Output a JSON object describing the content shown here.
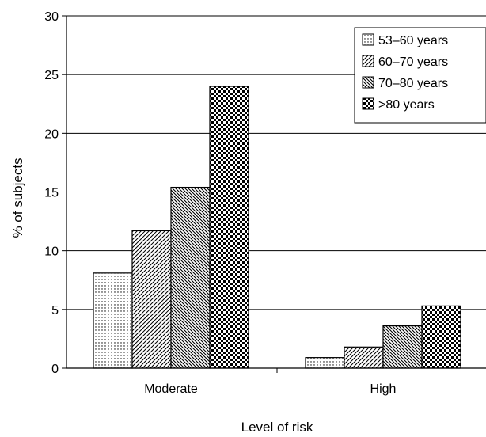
{
  "chart_data": {
    "type": "bar",
    "title": "",
    "xlabel": "Level of risk",
    "ylabel": "% of subjects",
    "categories": [
      "Moderate",
      "High"
    ],
    "ylim": [
      0,
      30
    ],
    "yticks": [
      "0",
      "5",
      "10",
      "15",
      "20",
      "25",
      "30"
    ],
    "grid": true,
    "legend_position": "top-right",
    "series": [
      {
        "name": "53–60 years",
        "pattern": "dots",
        "values": [
          8.1,
          0.9
        ]
      },
      {
        "name": "60–70 years",
        "pattern": "diagonal-up",
        "values": [
          11.7,
          1.8
        ]
      },
      {
        "name": "70–80 years",
        "pattern": "diagonal-down",
        "values": [
          15.4,
          3.6
        ]
      },
      {
        "name": ">80 years",
        "pattern": "checker",
        "values": [
          24.0,
          5.3
        ]
      }
    ]
  }
}
